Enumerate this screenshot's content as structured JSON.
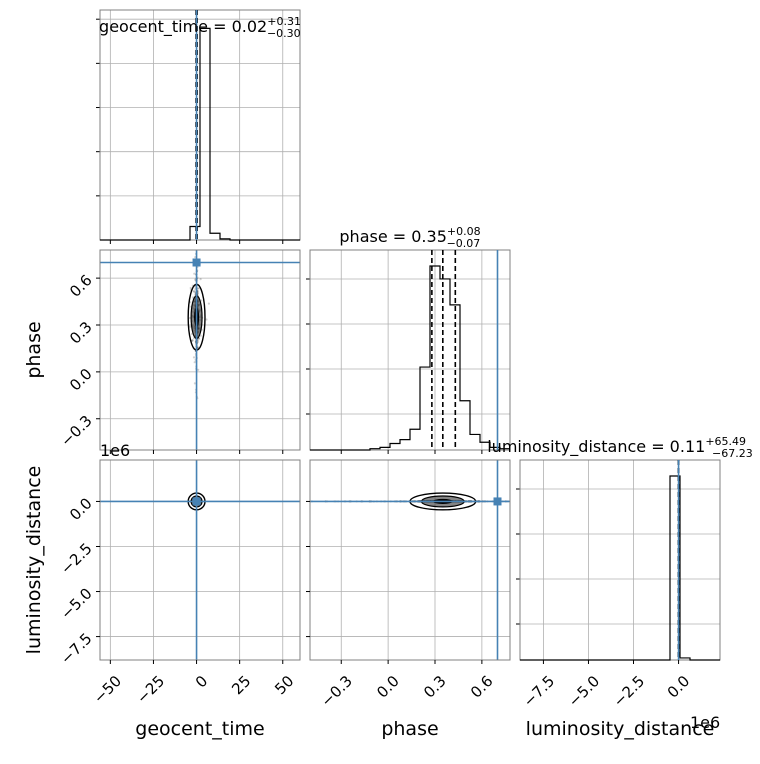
{
  "chart_data": {
    "type": "corner",
    "parameters": [
      "geocent_time",
      "phase",
      "luminosity_distance"
    ],
    "axis_labels": [
      "geocent_time",
      "phase",
      "luminosity_distance"
    ],
    "offset_labels": {
      "luminosity_distance_y": "1e6",
      "luminosity_distance_x": "1e6"
    },
    "titles": {
      "geocent_time": {
        "prefix": "geocent_time = 0.02",
        "sup": "+0.31",
        "sub": "−0.30"
      },
      "phase": {
        "prefix": "phase = 0.35",
        "sup": "+0.08",
        "sub": "−0.07"
      },
      "luminosity_distance": {
        "prefix": "luminosity_distance = 0.11",
        "sup": "+65.49",
        "sub": "−67.23"
      }
    },
    "truth": {
      "geocent_time": 0.0,
      "phase": 0.7,
      "luminosity_distance": 0.0
    },
    "quantiles": {
      "geocent_time": [
        -0.28,
        0.02,
        0.33
      ],
      "phase": [
        0.28,
        0.35,
        0.43
      ],
      "luminosity_distance": [
        -67.23,
        0.11,
        65.49
      ]
    },
    "ranges": {
      "geocent_time": [
        -56,
        60
      ],
      "phase": [
        -0.5,
        0.78
      ],
      "luminosity_distance": [
        -8800000,
        2300000
      ]
    },
    "ticks": {
      "geocent_time": {
        "values": [
          -50,
          -25,
          0,
          25,
          50
        ],
        "labels": [
          "−50",
          "−25",
          "0",
          "25",
          "50"
        ]
      },
      "phase": {
        "values": [
          -0.3,
          0.0,
          0.3,
          0.6
        ],
        "labels": [
          "−0.3",
          "0.0",
          "0.3",
          "0.6"
        ]
      },
      "luminosity_distance": {
        "values": [
          -7500000,
          -5000000,
          -2500000,
          0
        ],
        "labels": [
          "−7.5",
          "−5.0",
          "−2.5",
          "0.0"
        ]
      }
    },
    "histograms": {
      "geocent_time": {
        "edges": [
          -56,
          -50.2,
          -44.4,
          -38.6,
          -32.8,
          -27,
          -21.2,
          -15.4,
          -9.6,
          -3.8,
          2.0,
          7.8,
          13.6,
          19.4,
          25.2,
          31,
          36.8,
          42.6,
          48.4,
          54.2,
          60
        ],
        "counts": [
          0,
          0,
          0,
          0,
          0,
          0,
          0,
          0,
          0,
          0.06,
          0.94,
          0.03,
          0.005,
          0,
          0,
          0,
          0,
          0,
          0,
          0
        ]
      },
      "phase": {
        "edges": [
          -0.5,
          -0.436,
          -0.372,
          -0.308,
          -0.244,
          -0.18,
          -0.116,
          -0.052,
          0.012,
          0.076,
          0.14,
          0.204,
          0.268,
          0.332,
          0.396,
          0.46,
          0.524,
          0.588,
          0.652,
          0.716,
          0.78
        ],
        "counts": [
          0,
          0,
          0,
          0,
          0,
          0,
          0.005,
          0.01,
          0.025,
          0.04,
          0.08,
          0.32,
          0.71,
          0.66,
          0.56,
          0.19,
          0.06,
          0.03,
          0.01,
          0.005
        ]
      },
      "luminosity_distance": {
        "edges": [
          -8800000,
          -8245000,
          -7690000,
          -7135000,
          -6580000,
          -6025000,
          -5470000,
          -4915000,
          -4360000,
          -3805000,
          -3250000,
          -2695000,
          -2140000,
          -1585000,
          -1030000,
          -475000,
          80000,
          635000,
          1190000,
          1745000,
          2300000
        ],
        "counts": [
          0,
          0,
          0,
          0,
          0,
          0,
          0,
          0,
          0,
          0,
          0,
          0,
          0,
          0,
          0,
          0.89,
          0.01,
          0,
          0,
          0
        ]
      }
    }
  }
}
